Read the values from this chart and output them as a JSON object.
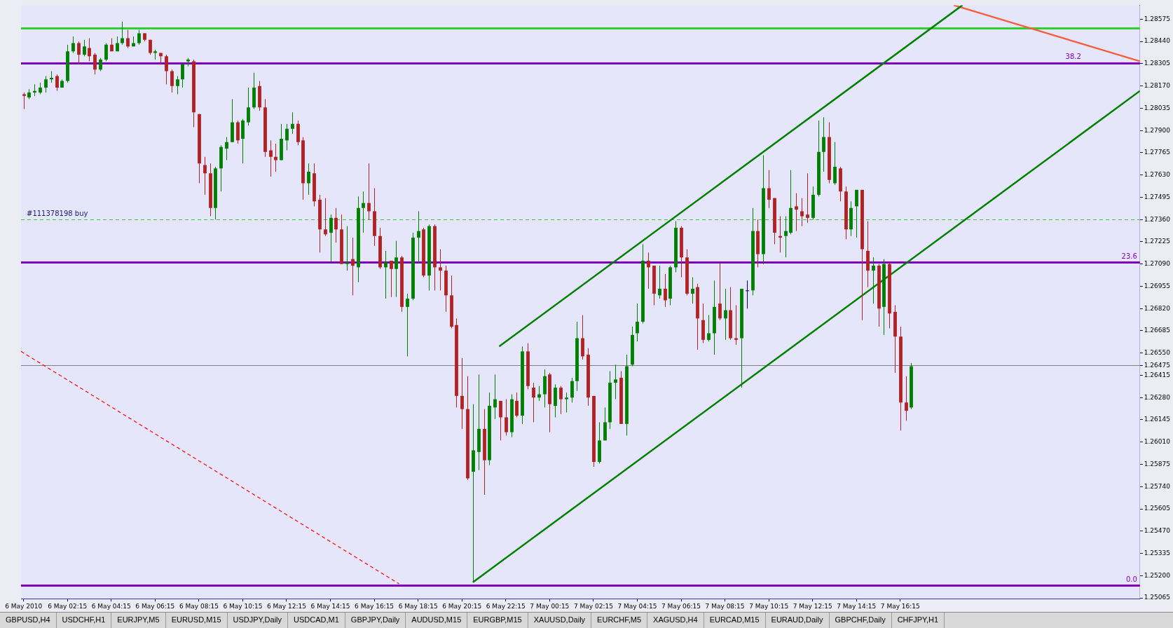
{
  "chart_data": {
    "type": "candlestick",
    "x": [
      "2010-05-06T00:15",
      "2010-05-06T00:30",
      "2010-05-06T00:45",
      "2010-05-06T01:00",
      "2010-05-06T01:15",
      "2010-05-06T01:30",
      "2010-05-06T01:45",
      "2010-05-06T02:00",
      "2010-05-06T02:15",
      "2010-05-06T02:30",
      "2010-05-06T02:45",
      "2010-05-06T03:00",
      "2010-05-06T03:15",
      "2010-05-06T03:30",
      "2010-05-06T03:45",
      "2010-05-06T04:00",
      "2010-05-06T04:15",
      "2010-05-06T04:30",
      "2010-05-06T04:45",
      "2010-05-06T05:00",
      "2010-05-06T05:15",
      "2010-05-06T05:30",
      "2010-05-06T05:45",
      "2010-05-06T06:00",
      "2010-05-06T06:15",
      "2010-05-06T06:30",
      "2010-05-06T06:45",
      "2010-05-06T07:00",
      "2010-05-06T07:15",
      "2010-05-06T07:30",
      "2010-05-06T07:45",
      "2010-05-06T08:00",
      "2010-05-06T08:15",
      "2010-05-06T08:30",
      "2010-05-06T08:45",
      "2010-05-06T09:00",
      "2010-05-06T09:15",
      "2010-05-06T09:30",
      "2010-05-06T09:45",
      "2010-05-06T10:00",
      "2010-05-06T10:15",
      "2010-05-06T10:30",
      "2010-05-06T10:45",
      "2010-05-06T11:00",
      "2010-05-06T11:15",
      "2010-05-06T11:30",
      "2010-05-06T11:45",
      "2010-05-06T12:00",
      "2010-05-06T12:15",
      "2010-05-06T12:30",
      "2010-05-06T12:45",
      "2010-05-06T13:00",
      "2010-05-06T13:15",
      "2010-05-06T13:30",
      "2010-05-06T13:45",
      "2010-05-06T14:00",
      "2010-05-06T14:15",
      "2010-05-06T14:30",
      "2010-05-06T14:45",
      "2010-05-06T15:00",
      "2010-05-06T15:15",
      "2010-05-06T15:30",
      "2010-05-06T15:45",
      "2010-05-06T16:00",
      "2010-05-06T16:15",
      "2010-05-06T16:30",
      "2010-05-06T16:45",
      "2010-05-06T17:00",
      "2010-05-06T17:15",
      "2010-05-06T17:30",
      "2010-05-06T17:45",
      "2010-05-06T18:00",
      "2010-05-06T18:15",
      "2010-05-06T18:30",
      "2010-05-06T18:45",
      "2010-05-06T19:00",
      "2010-05-06T19:15",
      "2010-05-06T19:30",
      "2010-05-06T19:45",
      "2010-05-06T20:00",
      "2010-05-06T20:15",
      "2010-05-06T20:30",
      "2010-05-06T20:45",
      "2010-05-06T21:00",
      "2010-05-06T21:15",
      "2010-05-06T21:30",
      "2010-05-06T21:45",
      "2010-05-06T22:00",
      "2010-05-06T22:15",
      "2010-05-06T22:30",
      "2010-05-06T22:45",
      "2010-05-06T23:00",
      "2010-05-06T23:15",
      "2010-05-06T23:30",
      "2010-05-06T23:45",
      "2010-05-07T00:00",
      "2010-05-07T00:15",
      "2010-05-07T00:30",
      "2010-05-07T00:45",
      "2010-05-07T01:00",
      "2010-05-07T01:15",
      "2010-05-07T01:30",
      "2010-05-07T01:45",
      "2010-05-07T02:00",
      "2010-05-07T02:15",
      "2010-05-07T02:30",
      "2010-05-07T02:45",
      "2010-05-07T03:00",
      "2010-05-07T03:15",
      "2010-05-07T03:30",
      "2010-05-07T03:45",
      "2010-05-07T04:00",
      "2010-05-07T04:15",
      "2010-05-07T04:30",
      "2010-05-07T04:45",
      "2010-05-07T05:00",
      "2010-05-07T05:15",
      "2010-05-07T05:30",
      "2010-05-07T05:45",
      "2010-05-07T06:00",
      "2010-05-07T06:15",
      "2010-05-07T06:30",
      "2010-05-07T06:45",
      "2010-05-07T07:00",
      "2010-05-07T07:15",
      "2010-05-07T07:30",
      "2010-05-07T07:45",
      "2010-05-07T08:00",
      "2010-05-07T08:15",
      "2010-05-07T08:30",
      "2010-05-07T08:45",
      "2010-05-07T09:00",
      "2010-05-07T09:15",
      "2010-05-07T09:30",
      "2010-05-07T09:45",
      "2010-05-07T10:00",
      "2010-05-07T10:15",
      "2010-05-07T10:30",
      "2010-05-07T10:45",
      "2010-05-07T11:00",
      "2010-05-07T11:15",
      "2010-05-07T11:30",
      "2010-05-07T11:45",
      "2010-05-07T12:00",
      "2010-05-07T12:15",
      "2010-05-07T12:30",
      "2010-05-07T12:45",
      "2010-05-07T13:00",
      "2010-05-07T13:15",
      "2010-05-07T13:30",
      "2010-05-07T13:45",
      "2010-05-07T14:00",
      "2010-05-07T14:15",
      "2010-05-07T14:30",
      "2010-05-07T14:45",
      "2010-05-07T15:00",
      "2010-05-07T15:15",
      "2010-05-07T15:30",
      "2010-05-07T15:45",
      "2010-05-07T16:00",
      "2010-05-07T16:15",
      "2010-05-07T16:30",
      "2010-05-07T16:45"
    ],
    "ohlc": [
      [
        1.2812,
        1.2813,
        1.2803,
        1.2811
      ],
      [
        1.281,
        1.2815,
        1.2809,
        1.2813
      ],
      [
        1.2813,
        1.2818,
        1.2811,
        1.2814
      ],
      [
        1.2813,
        1.2819,
        1.2812,
        1.2816
      ],
      [
        1.2816,
        1.2823,
        1.2813,
        1.2821
      ],
      [
        1.2821,
        1.2826,
        1.2819,
        1.2822
      ],
      [
        1.2823,
        1.2824,
        1.2814,
        1.2816
      ],
      [
        1.2816,
        1.2821,
        1.2816,
        1.282
      ],
      [
        1.282,
        1.2842,
        1.2819,
        1.2838
      ],
      [
        1.2838,
        1.2847,
        1.2837,
        1.2843
      ],
      [
        1.2843,
        1.2844,
        1.283,
        1.2836
      ],
      [
        1.2836,
        1.2845,
        1.2835,
        1.2841
      ],
      [
        1.284,
        1.2846,
        1.2832,
        1.2835
      ],
      [
        1.2836,
        1.2837,
        1.2824,
        1.2827
      ],
      [
        1.2827,
        1.2834,
        1.2826,
        1.2833
      ],
      [
        1.2833,
        1.2843,
        1.2832,
        1.2842
      ],
      [
        1.2842,
        1.2846,
        1.2838,
        1.2838
      ],
      [
        1.2838,
        1.2847,
        1.2838,
        1.2843
      ],
      [
        1.2843,
        1.2856,
        1.2842,
        1.2846
      ],
      [
        1.2846,
        1.2851,
        1.284,
        1.2841
      ],
      [
        1.2841,
        1.2847,
        1.2841,
        1.2843
      ],
      [
        1.2843,
        1.2851,
        1.2842,
        1.2849
      ],
      [
        1.2849,
        1.2849,
        1.2844,
        1.2845
      ],
      [
        1.2845,
        1.2845,
        1.2836,
        1.2837
      ],
      [
        1.2837,
        1.2839,
        1.2833,
        1.2838
      ],
      [
        1.2837,
        1.2837,
        1.283,
        1.2835
      ],
      [
        1.2835,
        1.2836,
        1.2818,
        1.2826
      ],
      [
        1.2826,
        1.2827,
        1.2813,
        1.2817
      ],
      [
        1.2817,
        1.2823,
        1.2812,
        1.2821
      ],
      [
        1.2821,
        1.2831,
        1.2816,
        1.283
      ],
      [
        1.2832,
        1.2834,
        1.2829,
        1.2833
      ],
      [
        1.2832,
        1.2833,
        1.2792,
        1.2801
      ],
      [
        1.28,
        1.28,
        1.2758,
        1.277
      ],
      [
        1.2769,
        1.2774,
        1.2751,
        1.2764
      ],
      [
        1.2764,
        1.277,
        1.2738,
        1.2743
      ],
      [
        1.2743,
        1.2768,
        1.2736,
        1.2767
      ],
      [
        1.2767,
        1.2781,
        1.2753,
        1.278
      ],
      [
        1.2779,
        1.2786,
        1.2772,
        1.2783
      ],
      [
        1.2783,
        1.2809,
        1.2783,
        1.2795
      ],
      [
        1.2795,
        1.2796,
        1.2782,
        1.2784
      ],
      [
        1.2785,
        1.2797,
        1.277,
        1.2796
      ],
      [
        1.2795,
        1.2816,
        1.2793,
        1.2804
      ],
      [
        1.2804,
        1.2825,
        1.2803,
        1.2816
      ],
      [
        1.2817,
        1.282,
        1.2802,
        1.2804
      ],
      [
        1.2804,
        1.2809,
        1.2774,
        1.2777
      ],
      [
        1.2778,
        1.2784,
        1.2762,
        1.2774
      ],
      [
        1.2774,
        1.2782,
        1.2765,
        1.2772
      ],
      [
        1.2772,
        1.2794,
        1.2772,
        1.2785
      ],
      [
        1.2784,
        1.2794,
        1.2778,
        1.2791
      ],
      [
        1.2791,
        1.2801,
        1.2788,
        1.2794
      ],
      [
        1.2794,
        1.2796,
        1.2781,
        1.2783
      ],
      [
        1.2784,
        1.2786,
        1.2748,
        1.2758
      ],
      [
        1.2758,
        1.277,
        1.2751,
        1.2765
      ],
      [
        1.2764,
        1.277,
        1.2744,
        1.2747
      ],
      [
        1.2748,
        1.2751,
        1.2716,
        1.273
      ],
      [
        1.273,
        1.2749,
        1.2726,
        1.2727
      ],
      [
        1.2728,
        1.2739,
        1.271,
        1.2737
      ],
      [
        1.2737,
        1.2743,
        1.2722,
        1.273
      ],
      [
        1.273,
        1.2739,
        1.2709,
        1.2709
      ],
      [
        1.2709,
        1.2732,
        1.2705,
        1.271
      ],
      [
        1.2712,
        1.2725,
        1.269,
        1.2708
      ],
      [
        1.2707,
        1.275,
        1.2698,
        1.2743
      ],
      [
        1.2743,
        1.2753,
        1.2728,
        1.2746
      ],
      [
        1.2746,
        1.277,
        1.2736,
        1.2741
      ],
      [
        1.2741,
        1.2755,
        1.272,
        1.2726
      ],
      [
        1.2726,
        1.2731,
        1.2706,
        1.2707
      ],
      [
        1.2707,
        1.2717,
        1.2688,
        1.271
      ],
      [
        1.2711,
        1.2711,
        1.2689,
        1.2706
      ],
      [
        1.2706,
        1.2723,
        1.2689,
        1.2713
      ],
      [
        1.2713,
        1.2714,
        1.268,
        1.2683
      ],
      [
        1.2683,
        1.2691,
        1.2653,
        1.2688
      ],
      [
        1.2688,
        1.2728,
        1.2687,
        1.2725
      ],
      [
        1.2725,
        1.2741,
        1.271,
        1.2729
      ],
      [
        1.273,
        1.2731,
        1.2701,
        1.2702
      ],
      [
        1.2702,
        1.2733,
        1.2693,
        1.2732
      ],
      [
        1.2732,
        1.2733,
        1.2693,
        1.2707
      ],
      [
        1.2707,
        1.2718,
        1.2693,
        1.2705
      ],
      [
        1.2705,
        1.2708,
        1.268,
        1.269
      ],
      [
        1.269,
        1.2702,
        1.267,
        1.2671
      ],
      [
        1.2672,
        1.2676,
        1.2622,
        1.2629
      ],
      [
        1.2629,
        1.2652,
        1.2609,
        1.2621
      ],
      [
        1.2621,
        1.2641,
        1.2578,
        1.2579
      ],
      [
        1.2583,
        1.2624,
        1.2516,
        1.2596
      ],
      [
        1.2595,
        1.2642,
        1.2584,
        1.2609
      ],
      [
        1.2609,
        1.2621,
        1.2569,
        1.259
      ],
      [
        1.259,
        1.2631,
        1.2587,
        1.2623
      ],
      [
        1.2622,
        1.2642,
        1.2615,
        1.2627
      ],
      [
        1.2626,
        1.2626,
        1.2602,
        1.2616
      ],
      [
        1.2616,
        1.2627,
        1.2605,
        1.2607
      ],
      [
        1.2607,
        1.263,
        1.2604,
        1.2627
      ],
      [
        1.2626,
        1.2631,
        1.2616,
        1.2617
      ],
      [
        1.2617,
        1.2659,
        1.2612,
        1.2656
      ],
      [
        1.2656,
        1.2661,
        1.2633,
        1.2635
      ],
      [
        1.2634,
        1.2637,
        1.2613,
        1.2628
      ],
      [
        1.2628,
        1.2635,
        1.2626,
        1.263
      ],
      [
        1.263,
        1.2645,
        1.2622,
        1.2641
      ],
      [
        1.2642,
        1.2643,
        1.2607,
        1.2624
      ],
      [
        1.2623,
        1.2636,
        1.2616,
        1.2634
      ],
      [
        1.2634,
        1.2635,
        1.2618,
        1.2627
      ],
      [
        1.2627,
        1.2631,
        1.2619,
        1.2628
      ],
      [
        1.2628,
        1.264,
        1.2625,
        1.2638
      ],
      [
        1.2638,
        1.2674,
        1.2632,
        1.2664
      ],
      [
        1.2664,
        1.2678,
        1.2651,
        1.2653
      ],
      [
        1.2654,
        1.2658,
        1.2623,
        1.2628
      ],
      [
        1.2629,
        1.2629,
        1.2586,
        1.2589
      ],
      [
        1.2589,
        1.2613,
        1.2588,
        1.2602
      ],
      [
        1.2602,
        1.2622,
        1.2602,
        1.2613
      ],
      [
        1.2613,
        1.2644,
        1.2609,
        1.2637
      ],
      [
        1.2637,
        1.2648,
        1.2627,
        1.2639
      ],
      [
        1.264,
        1.2644,
        1.2612,
        1.2612
      ],
      [
        1.2612,
        1.2654,
        1.2605,
        1.2647
      ],
      [
        1.2648,
        1.2671,
        1.2647,
        1.2666
      ],
      [
        1.2667,
        1.2685,
        1.2662,
        1.2674
      ],
      [
        1.2674,
        1.2721,
        1.2673,
        1.2711
      ],
      [
        1.2711,
        1.2716,
        1.2694,
        1.2707
      ],
      [
        1.2708,
        1.2708,
        1.2684,
        1.2691
      ],
      [
        1.269,
        1.2708,
        1.2688,
        1.2694
      ],
      [
        1.2694,
        1.2703,
        1.2683,
        1.2687
      ],
      [
        1.2688,
        1.2708,
        1.2684,
        1.2707
      ],
      [
        1.2707,
        1.2735,
        1.2704,
        1.2731
      ],
      [
        1.2731,
        1.2732,
        1.2701,
        1.2713
      ],
      [
        1.2713,
        1.2718,
        1.269,
        1.2691
      ],
      [
        1.2691,
        1.2701,
        1.2685,
        1.2694
      ],
      [
        1.2695,
        1.2697,
        1.2657,
        1.2676
      ],
      [
        1.2675,
        1.2685,
        1.2661,
        1.2663
      ],
      [
        1.2663,
        1.2678,
        1.2662,
        1.2667
      ],
      [
        1.2667,
        1.2699,
        1.2654,
        1.2683
      ],
      [
        1.2685,
        1.271,
        1.2675,
        1.2676
      ],
      [
        1.2676,
        1.2694,
        1.2663,
        1.2681
      ],
      [
        1.2681,
        1.2695,
        1.2663,
        1.2664
      ],
      [
        1.2664,
        1.2684,
        1.266,
        1.2663
      ],
      [
        1.2664,
        1.2694,
        1.2634,
        1.2694
      ],
      [
        1.2693,
        1.2699,
        1.2682,
        1.2693
      ],
      [
        1.2693,
        1.2743,
        1.269,
        1.2729
      ],
      [
        1.2729,
        1.2736,
        1.2707,
        1.2715
      ],
      [
        1.2715,
        1.2775,
        1.2709,
        1.2755
      ],
      [
        1.2755,
        1.2766,
        1.2743,
        1.2748
      ],
      [
        1.2749,
        1.2749,
        1.2721,
        1.2728
      ],
      [
        1.2726,
        1.2738,
        1.2716,
        1.2725
      ],
      [
        1.2726,
        1.2738,
        1.2713,
        1.2729
      ],
      [
        1.2728,
        1.2766,
        1.2727,
        1.2743
      ],
      [
        1.2744,
        1.2752,
        1.2729,
        1.2742
      ],
      [
        1.2741,
        1.2749,
        1.2732,
        1.2738
      ],
      [
        1.2739,
        1.2764,
        1.2734,
        1.2737
      ],
      [
        1.2737,
        1.2756,
        1.2736,
        1.2751
      ],
      [
        1.2751,
        1.2796,
        1.275,
        1.2777
      ],
      [
        1.2777,
        1.2798,
        1.2765,
        1.2786
      ],
      [
        1.2786,
        1.2795,
        1.2758,
        1.276
      ],
      [
        1.2758,
        1.2783,
        1.2757,
        1.2768
      ],
      [
        1.2767,
        1.2768,
        1.2747,
        1.2753
      ],
      [
        1.2753,
        1.2756,
        1.2724,
        1.273
      ],
      [
        1.273,
        1.2747,
        1.2726,
        1.2743
      ],
      [
        1.2744,
        1.2754,
        1.2725,
        1.2754
      ],
      [
        1.2754,
        1.2754,
        1.2675,
        1.2718
      ],
      [
        1.2717,
        1.2735,
        1.2695,
        1.2705
      ],
      [
        1.2705,
        1.2713,
        1.2685,
        1.2708
      ],
      [
        1.2708,
        1.2709,
        1.2671,
        1.2682
      ],
      [
        1.2683,
        1.2712,
        1.2666,
        1.2709
      ],
      [
        1.2709,
        1.271,
        1.267,
        1.2679
      ],
      [
        1.268,
        1.2684,
        1.2643,
        1.2665
      ],
      [
        1.2665,
        1.2671,
        1.2608,
        1.2625
      ],
      [
        1.2625,
        1.2641,
        1.2614,
        1.262
      ],
      [
        1.2622,
        1.2649,
        1.2621,
        1.2647
      ]
    ],
    "colors": [
      "#b22222",
      "#008000",
      "#008000",
      "#008000",
      "#008000",
      "#008000",
      "#b22222",
      "#008000",
      "#008000",
      "#008000",
      "#b22222",
      "#008000",
      "#b22222",
      "#b22222",
      "#008000",
      "#008000",
      "#b22222",
      "#008000",
      "#008000",
      "#b22222",
      "#008000",
      "#008000",
      "#b22222",
      "#b22222",
      "#008000",
      "#b22222",
      "#b22222",
      "#b22222",
      "#008000",
      "#008000",
      "#008000",
      "#b22222",
      "#b22222",
      "#b22222",
      "#b22222",
      "#008000",
      "#008000",
      "#008000",
      "#008000",
      "#b22222",
      "#008000",
      "#008000",
      "#008000",
      "#b22222",
      "#b22222",
      "#b22222",
      "#b22222",
      "#008000",
      "#008000",
      "#008000",
      "#b22222",
      "#b22222",
      "#008000",
      "#b22222",
      "#b22222",
      "#b22222",
      "#008000",
      "#b22222",
      "#b22222",
      "#008000",
      "#b22222",
      "#008000",
      "#008000",
      "#b22222",
      "#b22222",
      "#b22222",
      "#008000",
      "#b22222",
      "#008000",
      "#b22222",
      "#008000",
      "#008000",
      "#008000",
      "#b22222",
      "#008000",
      "#b22222",
      "#b22222",
      "#b22222",
      "#b22222",
      "#b22222",
      "#b22222",
      "#b22222",
      "#008000",
      "#008000",
      "#b22222",
      "#008000",
      "#008000",
      "#b22222",
      "#b22222",
      "#008000",
      "#b22222",
      "#008000",
      "#b22222",
      "#b22222",
      "#008000",
      "#008000",
      "#b22222",
      "#008000",
      "#b22222",
      "#008000",
      "#008000",
      "#008000",
      "#b22222",
      "#b22222",
      "#b22222",
      "#008000",
      "#008000",
      "#008000",
      "#008000",
      "#b22222",
      "#008000",
      "#008000",
      "#008000",
      "#008000",
      "#b22222",
      "#b22222",
      "#008000",
      "#b22222",
      "#008000",
      "#008000",
      "#b22222",
      "#b22222",
      "#008000",
      "#b22222",
      "#b22222",
      "#008000",
      "#008000",
      "#b22222",
      "#008000",
      "#b22222",
      "#b22222",
      "#008000",
      "#000080",
      "#008000",
      "#b22222",
      "#008000",
      "#b22222",
      "#b22222",
      "#b22222",
      "#008000",
      "#008000",
      "#b22222",
      "#b22222",
      "#b22222",
      "#008000",
      "#008000",
      "#008000",
      "#b22222",
      "#008000",
      "#b22222",
      "#b22222",
      "#008000",
      "#008000",
      "#b22222",
      "#b22222",
      "#008000",
      "#b22222",
      "#008000",
      "#b22222",
      "#b22222",
      "#b22222",
      "#b22222",
      "#008000"
    ],
    "series": [
      {
        "type": "line",
        "x": [
          "2010-05-06T20:45",
          "2010-05-08T03:11"
        ],
        "values": [
          1.2516,
          1.2814
        ],
        "color": "#008000"
      },
      {
        "type": "line",
        "x": [
          "2010-05-06T21:57",
          "2010-05-07T19:05"
        ],
        "values": [
          1.2659,
          1.2866
        ],
        "color": "#008000"
      },
      {
        "type": "line",
        "x": [
          "2010-05-06T00:08",
          "2010-05-06T17:23"
        ],
        "values": [
          1.2656,
          1.2515
        ],
        "color": "#ff0000",
        "line_style": "dashed"
      },
      {
        "type": "line",
        "x": [
          "2010-05-07T18:41",
          "2010-05-08T03:11"
        ],
        "values": [
          1.2866,
          1.2832
        ],
        "color": "#f4603c"
      }
    ],
    "xlim": [
      "2010-05-06T00:08",
      "2010-05-08T03:11"
    ],
    "ylim": [
      1.2506,
      1.2866
    ],
    "xticks": [
      {
        "value": "2010-05-06T00:15",
        "label": "6 May 2010"
      },
      {
        "value": "2010-05-06T02:15",
        "label": "6 May 02:15"
      },
      {
        "value": "2010-05-06T04:15",
        "label": "6 May 04:15"
      },
      {
        "value": "2010-05-06T06:15",
        "label": "6 May 06:15"
      },
      {
        "value": "2010-05-06T08:15",
        "label": "6 May 08:15"
      },
      {
        "value": "2010-05-06T10:15",
        "label": "6 May 10:15"
      },
      {
        "value": "2010-05-06T12:15",
        "label": "6 May 12:15"
      },
      {
        "value": "2010-05-06T14:15",
        "label": "6 May 14:15"
      },
      {
        "value": "2010-05-06T16:15",
        "label": "6 May 16:15"
      },
      {
        "value": "2010-05-06T18:15",
        "label": "6 May 18:15"
      },
      {
        "value": "2010-05-06T20:15",
        "label": "6 May 20:15"
      },
      {
        "value": "2010-05-06T22:15",
        "label": "6 May 22:15"
      },
      {
        "value": "2010-05-07T00:15",
        "label": "7 May 00:15"
      },
      {
        "value": "2010-05-07T02:15",
        "label": "7 May 02:15"
      },
      {
        "value": "2010-05-07T04:15",
        "label": "7 May 04:15"
      },
      {
        "value": "2010-05-07T06:15",
        "label": "7 May 06:15"
      },
      {
        "value": "2010-05-07T08:15",
        "label": "7 May 08:15"
      },
      {
        "value": "2010-05-07T10:15",
        "label": "7 May 10:15"
      },
      {
        "value": "2010-05-07T12:15",
        "label": "7 May 12:15"
      },
      {
        "value": "2010-05-07T14:15",
        "label": "7 May 14:15"
      },
      {
        "value": "2010-05-07T16:15",
        "label": "7 May 16:15"
      }
    ],
    "yticks": [
      {
        "value": 1.25065,
        "label": "1.25065"
      },
      {
        "value": 1.252,
        "label": "1.25200"
      },
      {
        "value": 1.25335,
        "label": "1.25335"
      },
      {
        "value": 1.2547,
        "label": "1.25470"
      },
      {
        "value": 1.25605,
        "label": "1.25605"
      },
      {
        "value": 1.2574,
        "label": "1.25740"
      },
      {
        "value": 1.25875,
        "label": "1.25875"
      },
      {
        "value": 1.2601,
        "label": "1.26010"
      },
      {
        "value": 1.26145,
        "label": "1.26145"
      },
      {
        "value": 1.2628,
        "label": "1.26280"
      },
      {
        "value": 1.26415,
        "label": "1.26415"
      },
      {
        "value": 1.26475,
        "label": "1.26475"
      },
      {
        "value": 1.2655,
        "label": "1.26550"
      },
      {
        "value": 1.26685,
        "label": "1.26685"
      },
      {
        "value": 1.2682,
        "label": "1.26820"
      },
      {
        "value": 1.26955,
        "label": "1.26955"
      },
      {
        "value": 1.2709,
        "label": "1.27090"
      },
      {
        "value": 1.27225,
        "label": "1.27225"
      },
      {
        "value": 1.2736,
        "label": "1.27360"
      },
      {
        "value": 1.27495,
        "label": "1.27495"
      },
      {
        "value": 1.2763,
        "label": "1.27630"
      },
      {
        "value": 1.27765,
        "label": "1.27765"
      },
      {
        "value": 1.279,
        "label": "1.27900"
      },
      {
        "value": 1.28035,
        "label": "1.28035"
      },
      {
        "value": 1.2817,
        "label": "1.28170"
      },
      {
        "value": 1.28305,
        "label": "1.28305"
      },
      {
        "value": 1.2844,
        "label": "1.28440"
      },
      {
        "value": 1.28575,
        "label": "1.28575"
      }
    ],
    "ref_lines": [
      {
        "axis": "y",
        "value": 1.2852,
        "color": "#32cd32"
      },
      {
        "axis": "y",
        "value": 1.2831,
        "color": "#8000c0"
      },
      {
        "axis": "y",
        "value": 1.271,
        "color": "#8000c0"
      },
      {
        "axis": "y",
        "value": 1.2514,
        "color": "#8000c0"
      },
      {
        "axis": "y",
        "value": 1.2736,
        "label": "#111378198 buy",
        "color": "#32cd32",
        "line_style": "dashed"
      },
      {
        "axis": "y",
        "value": 1.26475,
        "color": "#808080",
        "line_style": "solid"
      }
    ],
    "annotations": [
      {
        "text": "38.2",
        "x": "2010-05-08T00:30",
        "y": 1.2831
      },
      {
        "text": "23.6",
        "x": "2010-05-08T03:11",
        "y": 1.271
      },
      {
        "text": "0.0",
        "x": "2010-05-08T03:11",
        "y": 1.2514
      },
      "GBPUSD,H4",
      "USDCHF,H1",
      "EURJPY,M5",
      "EURUSD,M15",
      "USDJPY,Daily",
      "USDCAD,M1",
      "GBPJPY,Daily",
      "AUDUSD,M15",
      "EURGBP,M15",
      "XAUUSD,Daily",
      "EURCHF,M5",
      "XAGUSD,H4",
      "EURCAD,M15",
      "EURAUD,Daily",
      "GBPCHF,Daily",
      "CHFJPY,H1"
    ]
  }
}
